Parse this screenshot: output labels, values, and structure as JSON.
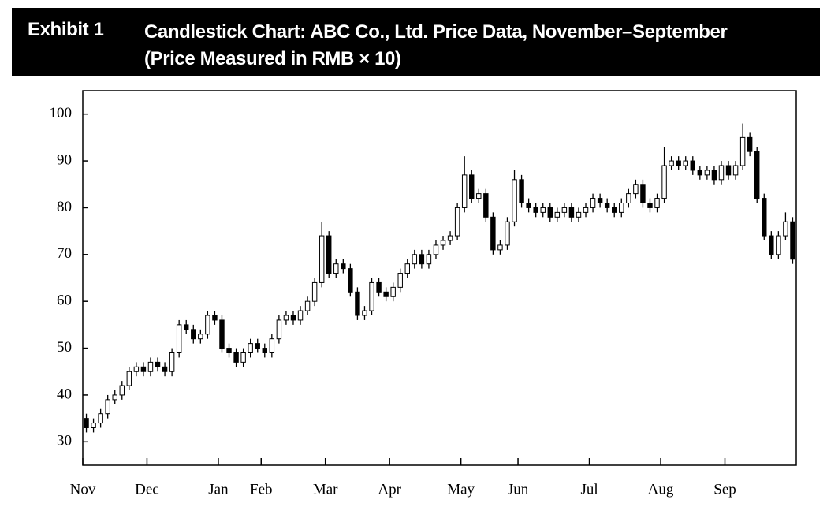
{
  "exhibit": "Exhibit 1",
  "chart_data": {
    "type": "candlestick",
    "title": "Candlestick Chart: ABC Co., Ltd. Price Data, November–September (Price Measured in RMB × 10)",
    "categories": [
      "Nov",
      null,
      null,
      null,
      null,
      null,
      null,
      null,
      null,
      "Dec",
      null,
      null,
      null,
      null,
      null,
      null,
      null,
      null,
      null,
      "Jan",
      null,
      null,
      null,
      null,
      null,
      "Feb",
      null,
      null,
      null,
      null,
      null,
      null,
      null,
      null,
      "Mar",
      null,
      null,
      null,
      null,
      null,
      null,
      null,
      null,
      "Apr",
      null,
      null,
      null,
      null,
      null,
      null,
      null,
      null,
      null,
      "May",
      null,
      null,
      null,
      null,
      null,
      null,
      null,
      "Jun",
      null,
      null,
      null,
      null,
      null,
      null,
      null,
      null,
      null,
      "Jul",
      null,
      null,
      null,
      null,
      null,
      null,
      null,
      null,
      null,
      "Aug",
      null,
      null,
      null,
      null,
      null,
      null,
      null,
      null,
      "Sep",
      null,
      null,
      null,
      null,
      null,
      null,
      null,
      null,
      null
    ],
    "open": [
      35,
      33,
      34,
      36,
      39,
      40,
      42,
      45,
      46,
      45,
      47,
      46,
      45,
      49,
      55,
      54,
      52,
      53,
      57,
      56,
      50,
      49,
      47,
      49,
      51,
      50,
      49,
      52,
      56,
      57,
      56,
      58,
      60,
      64,
      74,
      66,
      68,
      67,
      62,
      57,
      58,
      64,
      62,
      61,
      63,
      66,
      68,
      70,
      68,
      70,
      72,
      73,
      74,
      80,
      87,
      82,
      83,
      78,
      71,
      72,
      77,
      86,
      81,
      80,
      79,
      80,
      78,
      79,
      80,
      78,
      79,
      80,
      82,
      81,
      80,
      79,
      81,
      83,
      85,
      81,
      80,
      82,
      89,
      90,
      89,
      90,
      88,
      87,
      88,
      86,
      89,
      87,
      89,
      95,
      92,
      82,
      74,
      70,
      74,
      77
    ],
    "high": [
      36,
      35,
      37,
      40,
      41,
      43,
      46,
      47,
      47,
      48,
      48,
      47,
      50,
      56,
      56,
      55,
      54,
      58,
      58,
      57,
      51,
      50,
      50,
      52,
      52,
      51,
      53,
      57,
      58,
      58,
      59,
      61,
      65,
      77,
      75,
      69,
      69,
      68,
      63,
      59,
      65,
      65,
      63,
      64,
      67,
      69,
      71,
      71,
      71,
      73,
      74,
      75,
      81,
      91,
      88,
      84,
      84,
      79,
      73,
      78,
      88,
      87,
      82,
      81,
      81,
      81,
      80,
      81,
      81,
      80,
      81,
      83,
      83,
      82,
      81,
      82,
      84,
      86,
      86,
      82,
      83,
      93,
      91,
      91,
      91,
      91,
      89,
      89,
      89,
      90,
      90,
      90,
      98,
      96,
      93,
      83,
      75,
      75,
      79,
      78
    ],
    "low": [
      32,
      32,
      33,
      35,
      38,
      39,
      41,
      44,
      44,
      44,
      45,
      44,
      44,
      48,
      53,
      51,
      51,
      52,
      55,
      49,
      48,
      46,
      46,
      48,
      49,
      48,
      48,
      51,
      55,
      55,
      55,
      57,
      59,
      63,
      65,
      65,
      66,
      61,
      56,
      56,
      57,
      61,
      60,
      60,
      62,
      65,
      67,
      67,
      67,
      69,
      71,
      72,
      73,
      79,
      81,
      81,
      77,
      70,
      70,
      71,
      76,
      80,
      79,
      78,
      78,
      77,
      77,
      78,
      77,
      77,
      78,
      79,
      80,
      79,
      78,
      78,
      80,
      82,
      80,
      79,
      79,
      81,
      88,
      88,
      88,
      87,
      86,
      86,
      85,
      85,
      86,
      86,
      88,
      91,
      81,
      73,
      69,
      69,
      73,
      68
    ],
    "close": [
      33,
      34,
      36,
      39,
      40,
      42,
      45,
      46,
      45,
      47,
      46,
      45,
      49,
      55,
      54,
      52,
      53,
      57,
      56,
      50,
      49,
      47,
      49,
      51,
      50,
      49,
      52,
      56,
      57,
      56,
      58,
      60,
      64,
      74,
      66,
      68,
      67,
      62,
      57,
      58,
      64,
      62,
      61,
      63,
      66,
      68,
      70,
      68,
      70,
      72,
      73,
      74,
      80,
      87,
      82,
      83,
      78,
      71,
      72,
      77,
      86,
      81,
      80,
      79,
      80,
      78,
      79,
      80,
      78,
      79,
      80,
      82,
      81,
      80,
      79,
      81,
      83,
      85,
      81,
      80,
      82,
      89,
      90,
      89,
      90,
      88,
      87,
      88,
      86,
      89,
      87,
      89,
      95,
      92,
      82,
      74,
      70,
      74,
      77,
      69
    ],
    "color": "#000000",
    "ylim": [
      25,
      105
    ],
    "yticks": [
      30,
      40,
      50,
      60,
      70,
      80,
      90,
      100
    ]
  }
}
